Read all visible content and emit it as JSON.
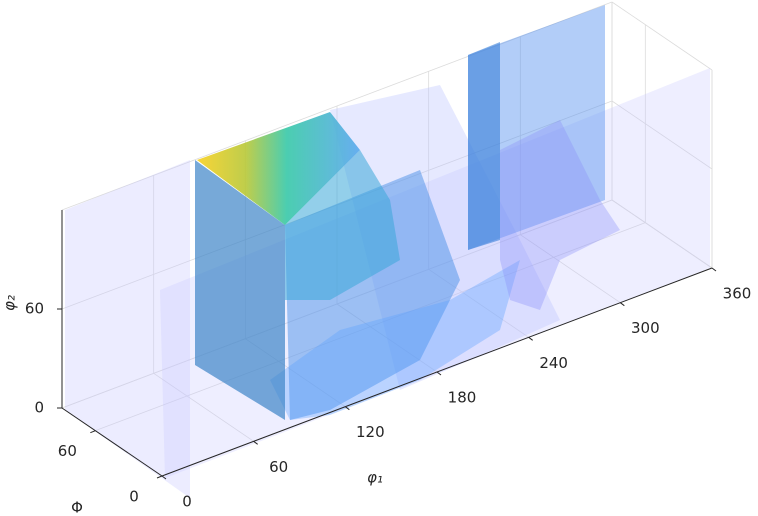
{
  "chart_data": {
    "type": "isosurface3d",
    "xlabel": "φ₁",
    "ylabel": "Φ",
    "zlabel": "φ₂",
    "xlim": [
      0,
      360
    ],
    "xticks": [
      0,
      60,
      120,
      180,
      240,
      300,
      360
    ],
    "ylim": [
      0,
      90
    ],
    "yticks": [
      0,
      60
    ],
    "zlim": [
      0,
      120
    ],
    "zticks": [
      0,
      60
    ],
    "grid": true
  }
}
